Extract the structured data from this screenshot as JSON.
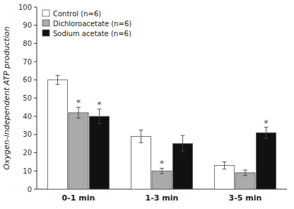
{
  "chart_data": {
    "type": "bar",
    "categories": [
      "0-1 min",
      "1-3 min",
      "3-5 min"
    ],
    "series": [
      {
        "name": "Control (n=6)",
        "color": "white",
        "values": [
          60,
          29,
          13
        ],
        "errors": [
          2.5,
          3.5,
          2.0
        ],
        "significant": [
          false,
          false,
          false
        ]
      },
      {
        "name": "Dichloroacetate (n=6)",
        "color": "#aaaaaa",
        "values": [
          42,
          10,
          9
        ],
        "errors": [
          3.0,
          1.5,
          1.5
        ],
        "significant": [
          true,
          true,
          false
        ]
      },
      {
        "name": "Sodium acetate (n=6)",
        "color": "#111111",
        "values": [
          40,
          25,
          31
        ],
        "errors": [
          4.0,
          4.5,
          3.0
        ],
        "significant": [
          true,
          false,
          true
        ]
      }
    ],
    "annotation": "*",
    "ylabel": "Oxygen-independent ATP production",
    "ylim": [
      0,
      100
    ],
    "yticks": [
      0,
      10,
      20,
      30,
      40,
      50,
      60,
      70,
      80,
      90,
      100
    ],
    "grid": false,
    "legend": "upper left"
  }
}
